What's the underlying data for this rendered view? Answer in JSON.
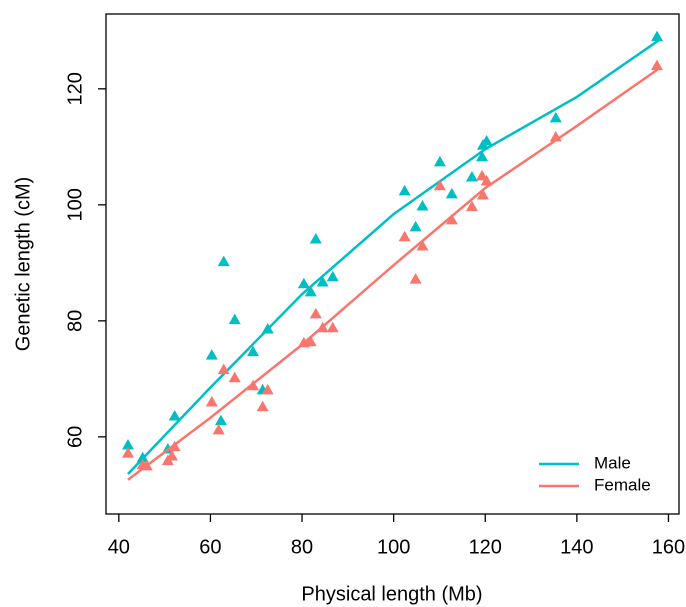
{
  "chart_data": {
    "type": "scatter",
    "x_label": "Physical length (Mb)",
    "y_label": "Genetic length (cM)",
    "xlim": [
      37.2,
      162.3
    ],
    "ylim": [
      46.7,
      132.9
    ],
    "xticks": [
      40,
      60,
      80,
      100,
      120,
      140,
      160
    ],
    "yticks": [
      60,
      80,
      100,
      120
    ],
    "legend": "bottom-right",
    "series": [
      {
        "name": "Male",
        "color": "#00BFC4",
        "x": [
          42.0,
          45.2,
          50.7,
          52.2,
          60.3,
          62.3,
          62.9,
          65.3,
          69.3,
          71.4,
          72.5,
          80.4,
          81.9,
          83.0,
          84.5,
          86.7,
          102.4,
          104.8,
          106.3,
          110.1,
          112.7,
          117.1,
          119.3,
          119.5,
          120.3,
          135.4,
          157.5
        ],
        "values": [
          58.6,
          56.4,
          57.9,
          63.6,
          74.1,
          62.8,
          90.2,
          80.2,
          74.7,
          68.1,
          78.6,
          86.4,
          85.0,
          94.1,
          86.7,
          87.6,
          102.4,
          96.2,
          99.8,
          107.4,
          101.9,
          104.8,
          108.3,
          110.3,
          111.0,
          115.0,
          129.0
        ],
        "fit": {
          "x": [
            42,
            60,
            80,
            100,
            120,
            140,
            158.3
          ],
          "values": [
            53.6,
            68.5,
            84.6,
            98.4,
            109.6,
            118.6,
            128.6
          ]
        }
      },
      {
        "name": "Female",
        "color": "#F8766D",
        "x": [
          42.0,
          45.2,
          46.1,
          50.7,
          51.6,
          52.2,
          60.3,
          61.8,
          62.9,
          65.3,
          69.3,
          71.4,
          72.5,
          80.4,
          81.9,
          83.0,
          84.5,
          86.7,
          102.4,
          104.8,
          106.3,
          110.1,
          112.7,
          117.1,
          119.3,
          119.5,
          120.3,
          135.4,
          157.5
        ],
        "values": [
          57.2,
          55.2,
          55.0,
          55.9,
          56.7,
          58.3,
          66.0,
          61.2,
          71.6,
          70.2,
          68.8,
          65.2,
          68.1,
          76.2,
          76.4,
          81.2,
          78.8,
          78.8,
          94.5,
          87.2,
          92.9,
          103.3,
          97.4,
          99.7,
          105.0,
          101.7,
          104.1,
          111.7,
          124.0
        ],
        "fit": {
          "x": [
            42,
            60,
            80,
            100,
            120,
            140,
            158.3
          ],
          "values": [
            52.6,
            63.3,
            75.9,
            89.6,
            102.9,
            113.6,
            123.7
          ]
        }
      }
    ]
  }
}
